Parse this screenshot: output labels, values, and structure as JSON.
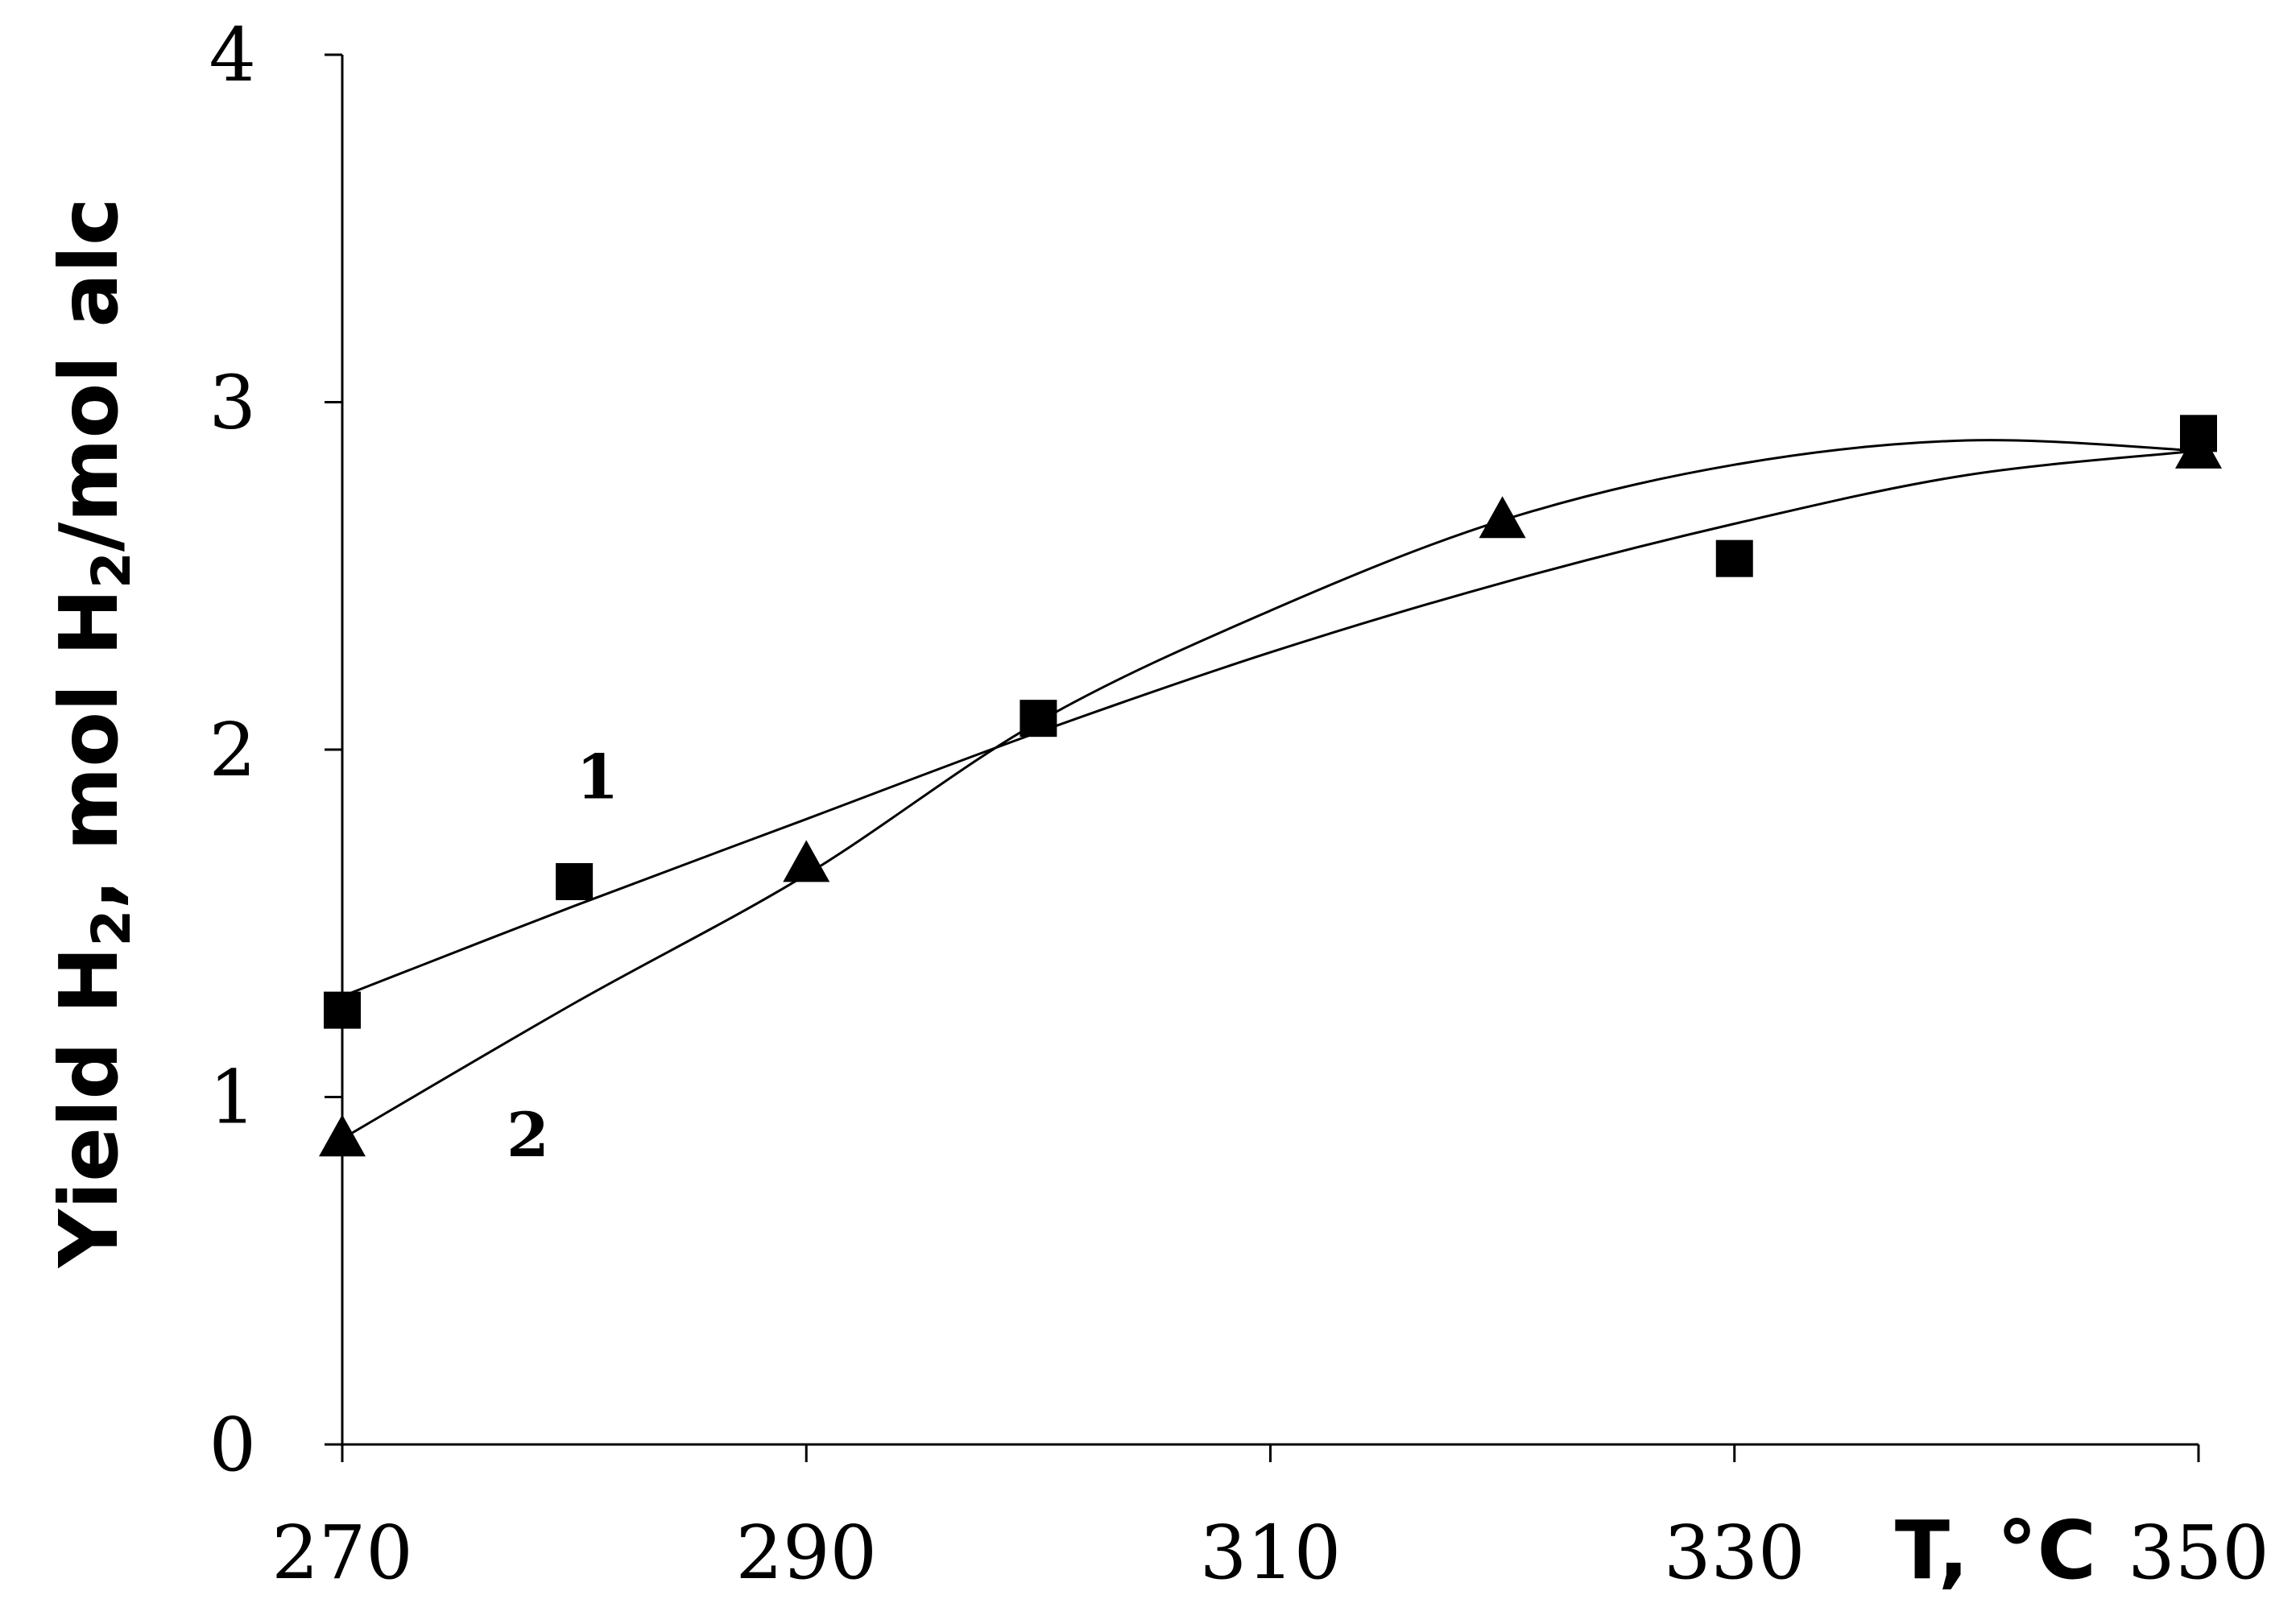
{
  "chart_data": {
    "type": "scatter",
    "title": "",
    "xlabel": "T, °C",
    "ylabel": "Yield H",
    "ylabel_sub1": "2",
    "ylabel_mid": ", mol H",
    "ylabel_sub2": "2",
    "ylabel_tail": "/mol alc",
    "xlim": [
      270,
      350
    ],
    "ylim": [
      0,
      4
    ],
    "xticks": [
      "270",
      "290",
      "310",
      "330",
      "350"
    ],
    "yticks": [
      "0",
      "1",
      "2",
      "3",
      "4"
    ],
    "grid": false,
    "legend": "none",
    "series": [
      {
        "label": "1",
        "marker": "square",
        "x": [
          270,
          280,
          300,
          330,
          350
        ],
        "y": [
          1.25,
          1.62,
          2.09,
          2.55,
          2.91
        ],
        "fit_x": [
          270,
          280,
          290,
          300,
          310,
          320,
          330,
          340,
          350
        ],
        "fit_y": [
          1.29,
          1.55,
          1.8,
          2.05,
          2.28,
          2.48,
          2.65,
          2.79,
          2.86
        ],
        "label_at": [
          281,
          1.92
        ]
      },
      {
        "label": "2",
        "marker": "triangle",
        "x": [
          270,
          290,
          320,
          350
        ],
        "y": [
          0.88,
          1.67,
          2.66,
          2.86
        ],
        "fit_x": [
          270,
          280,
          290,
          300,
          310,
          320,
          330,
          340,
          350
        ],
        "fit_y": [
          0.88,
          1.27,
          1.64,
          2.08,
          2.4,
          2.66,
          2.82,
          2.89,
          2.86
        ],
        "label_at": [
          278,
          0.89
        ]
      }
    ]
  }
}
